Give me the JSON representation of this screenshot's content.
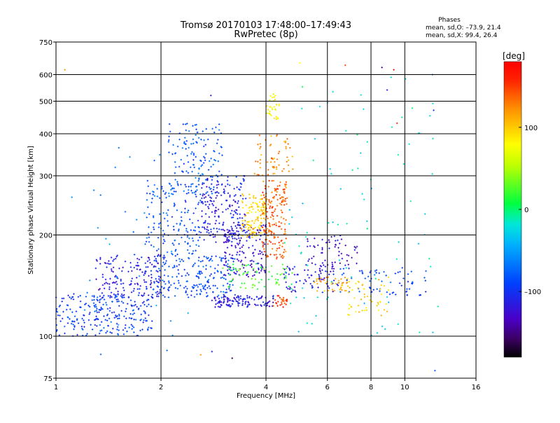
{
  "chart_data": {
    "type": "scatter",
    "title_line1": "Tromsø 20170103 17:48:00–17:49:43",
    "title_line2": "RwPretec (8p)",
    "xlabel": "Frequency [MHz]",
    "ylabel": "Stationary phase Virtual Height [km]",
    "x_scale": "log",
    "y_scale": "log",
    "xlim": [
      1,
      16
    ],
    "ylim": [
      75,
      750
    ],
    "x_ticks": [
      1,
      2,
      4,
      6,
      8,
      10,
      16
    ],
    "y_ticks": [
      75,
      100,
      200,
      300,
      400,
      500,
      600,
      750
    ],
    "x_tick_labels": [
      "1",
      "2",
      "4",
      "6",
      "8",
      "10",
      "16"
    ],
    "y_tick_labels": [
      "75",
      "100",
      "200",
      "300",
      "400",
      "500",
      "600",
      "750"
    ],
    "grid": true,
    "stats": {
      "heading": "Phases",
      "line_o": "mean, sd,O: –73.9, 21.4",
      "line_x": "mean, sd,X:  99.4, 26.4"
    },
    "colorbar": {
      "label": "[deg]",
      "range": [
        -180,
        180
      ],
      "ticks": [
        100,
        0,
        -100
      ],
      "tick_labels": [
        "100",
        "0",
        "–100"
      ]
    },
    "clusters": [
      {
        "f0": 1.0,
        "f1": 1.9,
        "h0": 100,
        "h1": 135,
        "phase": -95,
        "n": 260
      },
      {
        "f0": 1.3,
        "f1": 2.0,
        "h0": 130,
        "h1": 175,
        "phase": -115,
        "n": 160
      },
      {
        "f0": 1.9,
        "f1": 3.3,
        "h0": 130,
        "h1": 175,
        "phase": -85,
        "n": 220
      },
      {
        "f0": 1.8,
        "f1": 2.6,
        "h0": 175,
        "h1": 290,
        "phase": -85,
        "n": 150
      },
      {
        "f0": 2.1,
        "f1": 3.0,
        "h0": 260,
        "h1": 430,
        "phase": -80,
        "n": 150
      },
      {
        "f0": 2.6,
        "f1": 3.5,
        "h0": 190,
        "h1": 300,
        "phase": -110,
        "n": 200
      },
      {
        "f0": 3.0,
        "f1": 4.0,
        "h0": 150,
        "h1": 215,
        "phase": -125,
        "n": 160
      },
      {
        "f0": 3.4,
        "f1": 4.0,
        "h0": 195,
        "h1": 265,
        "phase": 95,
        "n": 130
      },
      {
        "f0": 3.9,
        "f1": 4.6,
        "h0": 170,
        "h1": 290,
        "phase": 140,
        "n": 180
      },
      {
        "f0": 3.7,
        "f1": 4.8,
        "h0": 300,
        "h1": 400,
        "phase": 125,
        "n": 60
      },
      {
        "f0": 4.0,
        "f1": 4.4,
        "h0": 440,
        "h1": 520,
        "phase": 80,
        "n": 30
      },
      {
        "f0": 2.8,
        "f1": 4.2,
        "h0": 122,
        "h1": 132,
        "phase": -115,
        "n": 120
      },
      {
        "f0": 4.2,
        "f1": 4.6,
        "h0": 122,
        "h1": 132,
        "phase": 150,
        "n": 25
      },
      {
        "f0": 3.0,
        "f1": 4.8,
        "h0": 138,
        "h1": 165,
        "phase": 20,
        "n": 70
      },
      {
        "f0": 4.5,
        "f1": 6.5,
        "h0": 135,
        "h1": 165,
        "phase": -115,
        "n": 80
      },
      {
        "f0": 5.2,
        "f1": 7.4,
        "h0": 160,
        "h1": 200,
        "phase": -130,
        "n": 60
      },
      {
        "f0": 5.5,
        "f1": 7.0,
        "h0": 135,
        "h1": 150,
        "phase": 110,
        "n": 45
      },
      {
        "f0": 6.5,
        "f1": 11.5,
        "h0": 132,
        "h1": 160,
        "phase": -90,
        "n": 70
      },
      {
        "f0": 6.8,
        "f1": 9.0,
        "h0": 115,
        "h1": 150,
        "phase": 95,
        "n": 50
      },
      {
        "f0": 4.5,
        "f1": 12.5,
        "h0": 100,
        "h1": 600,
        "phase": -20,
        "n": 90
      },
      {
        "f0": 1.1,
        "f1": 2.6,
        "h0": 88,
        "h1": 400,
        "phase": -60,
        "n": 40
      }
    ],
    "sparse_points": [
      {
        "f": 1.06,
        "h": 620,
        "phase": 120
      },
      {
        "f": 2.78,
        "h": 520,
        "phase": -120
      },
      {
        "f": 4.2,
        "h": 525,
        "phase": 60
      },
      {
        "f": 5.0,
        "h": 650,
        "phase": 80
      },
      {
        "f": 6.75,
        "h": 640,
        "phase": 150
      },
      {
        "f": 8.6,
        "h": 630,
        "phase": -150
      },
      {
        "f": 8.9,
        "h": 540,
        "phase": -120
      },
      {
        "f": 9.3,
        "h": 620,
        "phase": 170
      },
      {
        "f": 12.0,
        "h": 600,
        "phase": -70
      },
      {
        "f": 12.1,
        "h": 470,
        "phase": -95
      },
      {
        "f": 9.5,
        "h": 430,
        "phase": 160
      },
      {
        "f": 12.2,
        "h": 79,
        "phase": -80
      },
      {
        "f": 2.8,
        "h": 90,
        "phase": -110
      },
      {
        "f": 2.6,
        "h": 88,
        "phase": 120
      },
      {
        "f": 3.2,
        "h": 86,
        "phase": -160
      }
    ],
    "seed": 20170103
  }
}
